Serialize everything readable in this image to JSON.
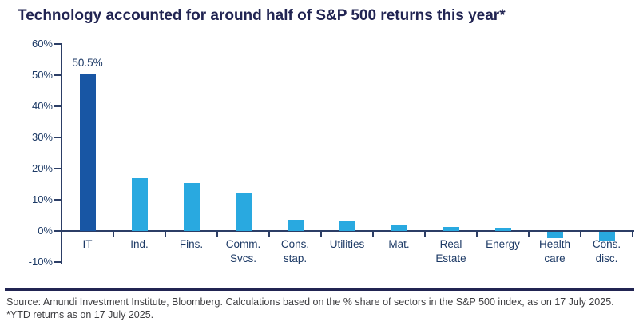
{
  "header": {
    "title": "Technology accounted for around half of S&P 500 returns this year*"
  },
  "chart_data": {
    "type": "bar",
    "title": "Technology accounted for around half of S&P 500 returns this year*",
    "categories": [
      "IT",
      "Ind.",
      "Fins.",
      "Comm. Svcs.",
      "Cons. stap.",
      "Utilities",
      "Mat.",
      "Real Estate",
      "Energy",
      "Health care",
      "Cons. disc."
    ],
    "values": [
      50.5,
      17,
      15.5,
      12,
      3.5,
      3,
      1.8,
      1.2,
      1,
      -2,
      -3
    ],
    "highlight_index": 0,
    "annotated_bar": {
      "index": 0,
      "label": "50.5%"
    },
    "yticks": [
      60,
      50,
      40,
      30,
      20,
      10,
      0,
      -10
    ],
    "ytick_labels": [
      "60%",
      "50%",
      "40%",
      "30%",
      "20%",
      "10%",
      "0%",
      "-10%"
    ],
    "ylim": [
      -10,
      60
    ],
    "grid": false,
    "legend": "none",
    "colors": {
      "highlight_bar": "#1856a4",
      "default_bar": "#29a9e0",
      "axis": "#2c3e66",
      "tick_label": "#1d3a66",
      "title": "#212452"
    }
  },
  "footer": {
    "source": "Source: Amundi Investment Institute, Bloomberg. Calculations based on the % share of sectors in the S&P 500 index, as on 17 July 2025. *YTD returns as on 17 July 2025."
  }
}
